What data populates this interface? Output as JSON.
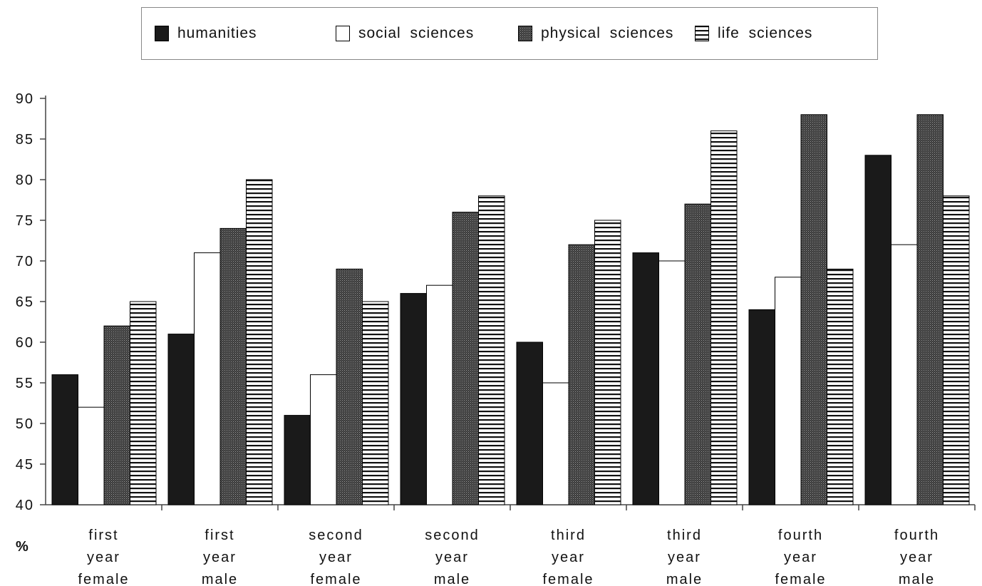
{
  "chart_data": {
    "type": "bar",
    "title": "",
    "ylabel": "%",
    "xlabel": "",
    "ylim": [
      40,
      90
    ],
    "yticks": [
      40,
      45,
      50,
      55,
      60,
      65,
      70,
      75,
      80,
      85,
      90
    ],
    "legend_position": "top",
    "grid": false,
    "categories": [
      [
        "first",
        "year",
        "female"
      ],
      [
        "first",
        "year",
        "male"
      ],
      [
        "second",
        "year",
        "female"
      ],
      [
        "second",
        "year",
        "male"
      ],
      [
        "third",
        "year",
        "female"
      ],
      [
        "third",
        "year",
        "male"
      ],
      [
        "fourth",
        "year",
        "female"
      ],
      [
        "fourth",
        "year",
        "male"
      ]
    ],
    "series": [
      {
        "name": "humanities",
        "pattern": "solid",
        "color": "#1a1a1a",
        "values": [
          56,
          61,
          51,
          66,
          60,
          71,
          64,
          83
        ]
      },
      {
        "name": "social sciences",
        "pattern": "white",
        "color": "#ffffff",
        "values": [
          52,
          71,
          56,
          67,
          55,
          70,
          68,
          72
        ]
      },
      {
        "name": "physical sciences",
        "pattern": "dotted",
        "color": "#4a4a4a",
        "values": [
          62,
          74,
          69,
          76,
          72,
          77,
          88,
          88
        ]
      },
      {
        "name": "life sciences",
        "pattern": "horizontal-lines",
        "color": "#ffffff",
        "values": [
          65,
          80,
          65,
          78,
          75,
          86,
          69,
          78
        ]
      }
    ]
  }
}
